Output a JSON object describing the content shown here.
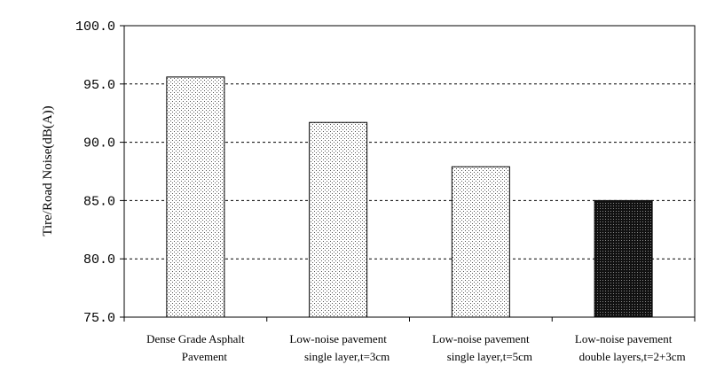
{
  "chart_data": {
    "type": "bar",
    "title": "",
    "xlabel": "",
    "ylabel": "Tire/Road Noise(dB(A))",
    "ylim": [
      75.0,
      100.0
    ],
    "yticks": [
      "75.0",
      "80.0",
      "85.0",
      "90.0",
      "95.0",
      "100.0"
    ],
    "grid": true,
    "legend": "none",
    "categories": [
      [
        "Dense Grade Asphalt",
        "Pavement"
      ],
      [
        "Low-noise pavement",
        "single layer,t=3cm"
      ],
      [
        "Low-noise pavement",
        "single layer,t=5cm"
      ],
      [
        "Low-noise pavement",
        "double layers,t=2+3cm"
      ]
    ],
    "values": [
      95.6,
      91.7,
      87.9,
      85.0
    ],
    "bar_styles": [
      "light-dotted",
      "light-dotted",
      "light-dotted",
      "dark-dotted"
    ]
  }
}
